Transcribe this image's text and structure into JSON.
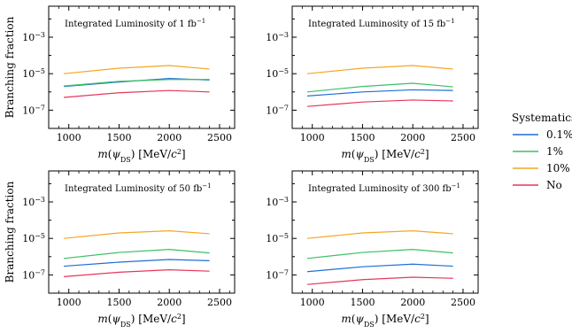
{
  "chart_data": [
    {
      "type": "line",
      "annotation": "Integrated Luminosity of 1 fb⁻¹",
      "xlabel": "m(ψDS) [MeV/c²]",
      "ylabel": "Branching fraction",
      "xlim": [
        800,
        2650
      ],
      "ylim": [
        1e-08,
        0.05
      ],
      "yscale": "log",
      "xticks": [
        "1000",
        "1500",
        "2000",
        "2500"
      ],
      "yticks": [
        "10⁻³",
        "10⁻⁵",
        "10⁻⁷"
      ],
      "x": [
        950,
        1500,
        2000,
        2400
      ],
      "series": [
        {
          "name": "0.1%",
          "color": "#1f6fd6",
          "values": [
            2e-06,
            3.5e-06,
            5.5e-06,
            4.5e-06
          ]
        },
        {
          "name": "1%",
          "color": "#3cbf64",
          "values": [
            2.1e-06,
            3.8e-06,
            4.8e-06,
            4.8e-06
          ]
        },
        {
          "name": "10%",
          "color": "#f5a623",
          "values": [
            1e-05,
            2e-05,
            2.8e-05,
            1.8e-05
          ]
        },
        {
          "name": "No",
          "color": "#e6375a",
          "values": [
            5e-07,
            9e-07,
            1.2e-06,
            1e-06
          ]
        }
      ]
    },
    {
      "type": "line",
      "annotation": "Integrated Luminosity of 15 fb⁻¹",
      "xlabel": "m(ψDS) [MeV/c²]",
      "ylabel": "",
      "xlim": [
        800,
        2650
      ],
      "ylim": [
        1e-08,
        0.05
      ],
      "yscale": "log",
      "xticks": [
        "1000",
        "1500",
        "2000",
        "2500"
      ],
      "yticks": [
        "10⁻³",
        "10⁻⁵",
        "10⁻⁷"
      ],
      "x": [
        950,
        1500,
        2000,
        2400
      ],
      "series": [
        {
          "name": "0.1%",
          "color": "#1f6fd6",
          "values": [
            6e-07,
            1e-06,
            1.3e-06,
            1.2e-06
          ]
        },
        {
          "name": "1%",
          "color": "#3cbf64",
          "values": [
            1e-06,
            2e-06,
            3e-06,
            1.9e-06
          ]
        },
        {
          "name": "10%",
          "color": "#f5a623",
          "values": [
            1e-05,
            2e-05,
            2.8e-05,
            1.8e-05
          ]
        },
        {
          "name": "No",
          "color": "#e6375a",
          "values": [
            1.6e-07,
            2.8e-07,
            3.6e-07,
            3.2e-07
          ]
        }
      ]
    },
    {
      "type": "line",
      "annotation": "Integrated Luminosity of 50 fb⁻¹",
      "xlabel": "m(ψDS) [MeV/c²]",
      "ylabel": "Branching fraction",
      "xlim": [
        800,
        2650
      ],
      "ylim": [
        1e-08,
        0.05
      ],
      "yscale": "log",
      "xticks": [
        "1000",
        "1500",
        "2000",
        "2500"
      ],
      "yticks": [
        "10⁻³",
        "10⁻⁵",
        "10⁻⁷"
      ],
      "x": [
        950,
        1500,
        2000,
        2400
      ],
      "series": [
        {
          "name": "0.1%",
          "color": "#1f6fd6",
          "values": [
            3e-07,
            5e-07,
            7e-07,
            6e-07
          ]
        },
        {
          "name": "1%",
          "color": "#3cbf64",
          "values": [
            8e-07,
            1.7e-06,
            2.5e-06,
            1.6e-06
          ]
        },
        {
          "name": "10%",
          "color": "#f5a623",
          "values": [
            1e-05,
            2e-05,
            2.6e-05,
            1.8e-05
          ]
        },
        {
          "name": "No",
          "color": "#e6375a",
          "values": [
            8e-08,
            1.4e-07,
            1.9e-07,
            1.6e-07
          ]
        }
      ]
    },
    {
      "type": "line",
      "annotation": "Integrated Luminosity of 300 fb⁻¹",
      "xlabel": "m(ψDS) [MeV/c²]",
      "ylabel": "",
      "xlim": [
        800,
        2650
      ],
      "ylim": [
        1e-08,
        0.05
      ],
      "yscale": "log",
      "xticks": [
        "1000",
        "1500",
        "2000",
        "2500"
      ],
      "yticks": [
        "10⁻³",
        "10⁻⁵",
        "10⁻⁷"
      ],
      "x": [
        950,
        1500,
        2000,
        2400
      ],
      "series": [
        {
          "name": "0.1%",
          "color": "#1f6fd6",
          "values": [
            1.5e-07,
            2.8e-07,
            3.9e-07,
            3e-07
          ]
        },
        {
          "name": "1%",
          "color": "#3cbf64",
          "values": [
            8e-07,
            1.7e-06,
            2.5e-06,
            1.6e-06
          ]
        },
        {
          "name": "10%",
          "color": "#f5a623",
          "values": [
            1e-05,
            2e-05,
            2.6e-05,
            1.8e-05
          ]
        },
        {
          "name": "No",
          "color": "#e6375a",
          "values": [
            3e-08,
            5.5e-08,
            7.5e-08,
            6.5e-08
          ]
        }
      ]
    }
  ],
  "legend": {
    "title": "Systematics",
    "placement": "right",
    "entries": [
      {
        "label": "0.1%",
        "color": "#1f6fd6"
      },
      {
        "label": "1%",
        "color": "#3cbf64"
      },
      {
        "label": "10%",
        "color": "#f5a623"
      },
      {
        "label": "No",
        "color": "#e6375a"
      }
    ]
  }
}
